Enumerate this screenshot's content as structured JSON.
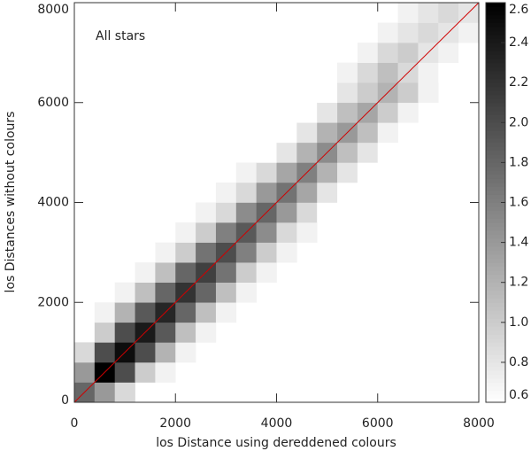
{
  "chart_data": {
    "type": "heatmap",
    "annotation": "All stars",
    "xlabel": "los Distance using dereddened colours",
    "ylabel": "los Distances without colours",
    "xlim": [
      0,
      8000
    ],
    "ylim": [
      0,
      8000
    ],
    "xticks": [
      0,
      2000,
      4000,
      6000,
      8000
    ],
    "yticks": [
      0,
      2000,
      4000,
      6000,
      8000
    ],
    "xbins": [
      0,
      400,
      800,
      1200,
      1600,
      2000,
      2400,
      2800,
      3200,
      3600,
      4000,
      4400,
      4800,
      5200,
      5600,
      6000,
      6400,
      6800,
      7200,
      7600,
      8000
    ],
    "ybins": [
      0,
      400,
      800,
      1200,
      1600,
      2000,
      2400,
      2800,
      3200,
      3600,
      4000,
      4400,
      4800,
      5200,
      5600,
      6000,
      6400,
      6800,
      7200,
      7600,
      8000
    ],
    "values": [
      [
        1.8,
        1.4,
        0.9,
        null,
        null,
        null,
        null,
        null,
        null,
        null,
        null,
        null,
        null,
        null,
        null,
        null,
        null,
        null,
        null,
        null
      ],
      [
        1.4,
        2.6,
        2.0,
        1.0,
        0.7,
        null,
        null,
        null,
        null,
        null,
        null,
        null,
        null,
        null,
        null,
        null,
        null,
        null,
        null,
        null
      ],
      [
        0.9,
        2.0,
        2.5,
        2.0,
        1.2,
        0.7,
        null,
        null,
        null,
        null,
        null,
        null,
        null,
        null,
        null,
        null,
        null,
        null,
        null,
        null
      ],
      [
        null,
        1.0,
        2.0,
        2.4,
        1.9,
        1.1,
        0.7,
        null,
        null,
        null,
        null,
        null,
        null,
        null,
        null,
        null,
        null,
        null,
        null,
        null
      ],
      [
        null,
        0.7,
        1.2,
        1.9,
        2.3,
        1.8,
        1.1,
        0.7,
        null,
        null,
        null,
        null,
        null,
        null,
        null,
        null,
        null,
        null,
        null,
        null
      ],
      [
        null,
        null,
        0.7,
        1.1,
        1.8,
        2.2,
        1.8,
        1.1,
        0.7,
        null,
        null,
        null,
        null,
        null,
        null,
        null,
        null,
        null,
        null,
        null
      ],
      [
        null,
        null,
        null,
        0.7,
        1.1,
        1.8,
        2.1,
        1.7,
        1.0,
        0.7,
        null,
        null,
        null,
        null,
        null,
        null,
        null,
        null,
        null,
        null
      ],
      [
        null,
        null,
        null,
        null,
        0.7,
        1.0,
        1.7,
        2.0,
        1.6,
        1.0,
        0.7,
        null,
        null,
        null,
        null,
        null,
        null,
        null,
        null,
        null
      ],
      [
        null,
        null,
        null,
        null,
        null,
        0.7,
        1.0,
        1.6,
        1.9,
        1.5,
        0.9,
        0.7,
        null,
        null,
        null,
        null,
        null,
        null,
        null,
        null
      ],
      [
        null,
        null,
        null,
        null,
        null,
        null,
        0.7,
        0.9,
        1.5,
        1.8,
        1.4,
        0.9,
        0.6,
        null,
        null,
        null,
        null,
        null,
        null,
        null
      ],
      [
        null,
        null,
        null,
        null,
        null,
        null,
        null,
        0.7,
        0.9,
        1.4,
        1.7,
        1.3,
        0.8,
        0.6,
        null,
        null,
        null,
        null,
        null,
        null
      ],
      [
        null,
        null,
        null,
        null,
        null,
        null,
        null,
        null,
        0.7,
        0.9,
        1.3,
        1.6,
        1.2,
        0.8,
        0.6,
        null,
        null,
        null,
        null,
        null
      ],
      [
        null,
        null,
        null,
        null,
        null,
        null,
        null,
        null,
        null,
        0.6,
        0.8,
        1.2,
        1.5,
        1.1,
        0.8,
        0.6,
        null,
        null,
        null,
        null
      ],
      [
        null,
        null,
        null,
        null,
        null,
        null,
        null,
        null,
        null,
        null,
        0.6,
        0.8,
        1.2,
        1.4,
        1.1,
        0.7,
        null,
        null,
        null,
        null
      ],
      [
        null,
        null,
        null,
        null,
        null,
        null,
        null,
        null,
        null,
        null,
        null,
        0.6,
        0.8,
        1.1,
        1.3,
        1.0,
        0.7,
        null,
        null,
        null
      ],
      [
        null,
        null,
        null,
        null,
        null,
        null,
        null,
        null,
        null,
        null,
        null,
        null,
        0.6,
        0.8,
        1.0,
        1.2,
        1.0,
        0.7,
        null,
        null
      ],
      [
        null,
        null,
        null,
        null,
        null,
        null,
        null,
        null,
        null,
        null,
        null,
        null,
        null,
        0.7,
        0.9,
        1.1,
        0.9,
        0.7,
        0.6,
        null
      ],
      [
        null,
        null,
        null,
        null,
        null,
        null,
        null,
        null,
        null,
        null,
        null,
        null,
        null,
        null,
        0.7,
        0.9,
        1.0,
        0.8,
        0.7,
        0.6
      ],
      [
        null,
        null,
        null,
        null,
        null,
        null,
        null,
        null,
        null,
        null,
        null,
        null,
        null,
        null,
        null,
        0.7,
        0.8,
        0.9,
        0.8,
        0.7
      ],
      [
        null,
        null,
        null,
        null,
        null,
        null,
        null,
        null,
        null,
        null,
        null,
        null,
        null,
        null,
        null,
        null,
        0.7,
        0.8,
        0.9,
        0.8
      ]
    ],
    "diagonal_color": "#d00000",
    "colorbar": {
      "lim": [
        0.6,
        2.6
      ],
      "ticks": [
        0.6,
        0.8,
        {
          "value": 1,
          "label": "1.0"
        },
        1.2,
        1.4,
        1.6,
        1.8,
        {
          "value": 2,
          "label": "2.0"
        },
        2.2,
        2.4,
        2.6
      ]
    }
  }
}
